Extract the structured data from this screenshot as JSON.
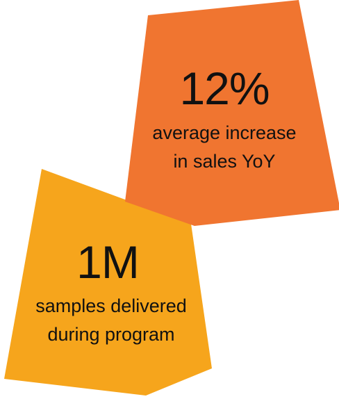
{
  "stats": [
    {
      "value": "12%",
      "lines": [
        "average increase",
        "in sales YoY"
      ]
    },
    {
      "value": "1M",
      "lines": [
        "samples delivered",
        "during program"
      ]
    }
  ]
}
